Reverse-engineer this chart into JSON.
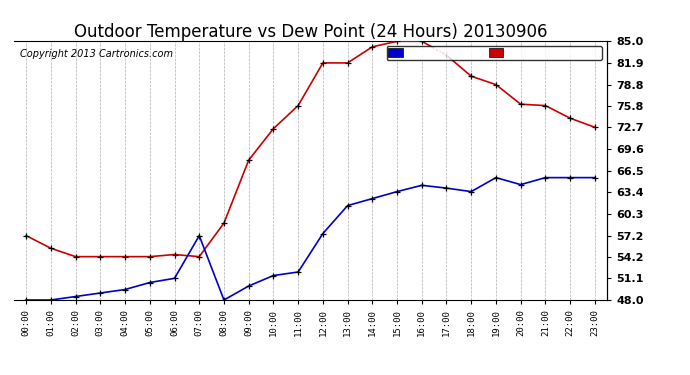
{
  "title": "Outdoor Temperature vs Dew Point (24 Hours) 20130906",
  "copyright": "Copyright 2013 Cartronics.com",
  "hours": [
    "00:00",
    "01:00",
    "02:00",
    "03:00",
    "04:00",
    "05:00",
    "06:00",
    "07:00",
    "08:00",
    "09:00",
    "10:00",
    "11:00",
    "12:00",
    "13:00",
    "14:00",
    "15:00",
    "16:00",
    "17:00",
    "18:00",
    "19:00",
    "20:00",
    "21:00",
    "22:00",
    "23:00"
  ],
  "temperature": [
    57.2,
    55.4,
    54.2,
    54.2,
    54.2,
    54.2,
    54.5,
    54.2,
    59.0,
    68.0,
    72.5,
    75.8,
    81.9,
    81.9,
    84.2,
    85.0,
    85.0,
    83.0,
    80.0,
    78.8,
    76.0,
    75.8,
    74.0,
    72.7
  ],
  "dew_point": [
    48.0,
    48.0,
    48.5,
    49.0,
    49.5,
    50.5,
    51.1,
    57.2,
    48.0,
    50.0,
    51.5,
    52.0,
    57.5,
    61.5,
    62.5,
    63.5,
    64.4,
    64.0,
    63.5,
    65.5,
    64.5,
    65.5,
    65.5,
    65.5
  ],
  "temp_color": "#cc0000",
  "dew_color": "#0000cc",
  "ylim": [
    48.0,
    85.0
  ],
  "yticks": [
    48.0,
    51.1,
    54.2,
    57.2,
    60.3,
    63.4,
    66.5,
    69.6,
    72.7,
    75.8,
    78.8,
    81.9,
    85.0
  ],
  "bg_color": "#ffffff",
  "grid_color": "#b0b0b0",
  "legend_dew_bg": "#0000cc",
  "legend_temp_bg": "#cc0000",
  "title_fontsize": 12,
  "copyright_fontsize": 7
}
